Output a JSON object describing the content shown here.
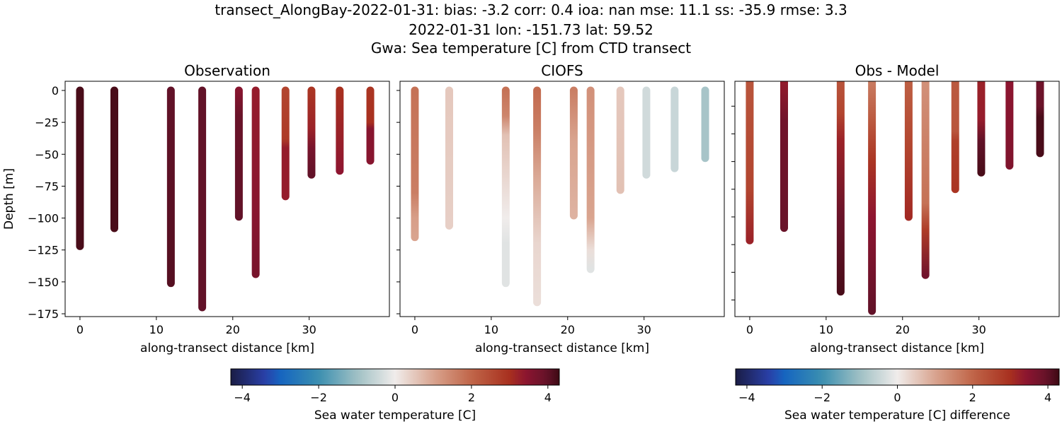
{
  "title_lines": [
    "transect_AlongBay-2022-01-31: bias: -3.2  corr: 0.4  ioa: nan  mse: 11.1  ss: -35.9  rmse: 3.3",
    "2022-01-31 lon: -151.73 lat: 59.52",
    "Gwa: Sea temperature [C] from CTD transect"
  ],
  "chart_data": [
    {
      "type": "scatter",
      "title": "Observation",
      "xlabel": "along-transect distance [km]",
      "ylabel": "Depth [m]",
      "xlim": [
        -1.94,
        40.5
      ],
      "ylim": [
        -177.2,
        7.2
      ],
      "xticks": [
        0,
        10,
        20,
        30
      ],
      "yticks": [
        0,
        -25,
        -50,
        -75,
        -100,
        -125,
        -150,
        -175
      ],
      "show_ytick_labels": true,
      "colorbar": 0,
      "stations": [
        {
          "x": 0,
          "depth": 122,
          "profile": [
            [
              0,
              4.2
            ],
            [
              122,
              4.2
            ]
          ]
        },
        {
          "x": 4.5,
          "depth": 108,
          "profile": [
            [
              0,
              4.2
            ],
            [
              108,
              4.2
            ]
          ]
        },
        {
          "x": 11.9,
          "depth": 151,
          "profile": [
            [
              0,
              4.0
            ],
            [
              151,
              4.1
            ]
          ]
        },
        {
          "x": 16.0,
          "depth": 170,
          "profile": [
            [
              0,
              4.0
            ],
            [
              170,
              4.0
            ]
          ]
        },
        {
          "x": 20.8,
          "depth": 99,
          "profile": [
            [
              0,
              3.5
            ],
            [
              20,
              3.9
            ],
            [
              99,
              4.0
            ]
          ]
        },
        {
          "x": 23.0,
          "depth": 144,
          "profile": [
            [
              0,
              3.3
            ],
            [
              100,
              3.5
            ],
            [
              144,
              3.7
            ]
          ]
        },
        {
          "x": 26.9,
          "depth": 83,
          "profile": [
            [
              0,
              2.6
            ],
            [
              38,
              2.8
            ],
            [
              45,
              3.3
            ],
            [
              83,
              3.3
            ]
          ]
        },
        {
          "x": 30.3,
          "depth": 66,
          "profile": [
            [
              0,
              2.9
            ],
            [
              30,
              3.2
            ],
            [
              45,
              3.7
            ],
            [
              66,
              4.0
            ]
          ]
        },
        {
          "x": 34.0,
          "depth": 63,
          "profile": [
            [
              0,
              3.0
            ],
            [
              63,
              3.4
            ]
          ]
        },
        {
          "x": 38.0,
          "depth": 55,
          "profile": [
            [
              0,
              2.9
            ],
            [
              25,
              3.0
            ],
            [
              30,
              3.5
            ],
            [
              55,
              3.5
            ]
          ]
        }
      ]
    },
    {
      "type": "scatter",
      "title": "CIOFS",
      "xlabel": "along-transect distance [km]",
      "ylabel": "",
      "xlim": [
        -1.94,
        40.5
      ],
      "ylim": [
        -177.2,
        7.2
      ],
      "xticks": [
        0,
        10,
        20,
        30
      ],
      "yticks": [
        0,
        -25,
        -50,
        -75,
        -100,
        -125,
        -150,
        -175
      ],
      "show_ytick_labels": false,
      "colorbar": 0,
      "stations": [
        {
          "x": 0,
          "depth": 115,
          "profile": [
            [
              0,
              1.8
            ],
            [
              80,
              1.6
            ],
            [
              100,
              1.1
            ],
            [
              115,
              1.0
            ]
          ]
        },
        {
          "x": 4.5,
          "depth": 106,
          "profile": [
            [
              0,
              0.5
            ],
            [
              106,
              0.4
            ]
          ]
        },
        {
          "x": 11.9,
          "depth": 151,
          "profile": [
            [
              0,
              1.8
            ],
            [
              20,
              1.5
            ],
            [
              35,
              0.6
            ],
            [
              100,
              0.0
            ],
            [
              120,
              -0.2
            ],
            [
              151,
              -0.2
            ]
          ]
        },
        {
          "x": 16.0,
          "depth": 166,
          "profile": [
            [
              0,
              1.9
            ],
            [
              30,
              1.6
            ],
            [
              70,
              0.9
            ],
            [
              120,
              0.3
            ],
            [
              166,
              0.2
            ]
          ]
        },
        {
          "x": 20.8,
          "depth": 98,
          "profile": [
            [
              0,
              1.6
            ],
            [
              40,
              1.0
            ],
            [
              98,
              0.8
            ]
          ]
        },
        {
          "x": 23.0,
          "depth": 140,
          "profile": [
            [
              0,
              1.3
            ],
            [
              100,
              1.0
            ],
            [
              125,
              0.2
            ],
            [
              140,
              -0.2
            ]
          ]
        },
        {
          "x": 26.9,
          "depth": 78,
          "profile": [
            [
              0,
              0.5
            ],
            [
              78,
              0.6
            ]
          ]
        },
        {
          "x": 30.3,
          "depth": 66,
          "profile": [
            [
              0,
              -0.4
            ],
            [
              66,
              -0.4
            ]
          ]
        },
        {
          "x": 34.0,
          "depth": 61,
          "profile": [
            [
              0,
              -0.5
            ],
            [
              61,
              -0.5
            ]
          ]
        },
        {
          "x": 38.0,
          "depth": 53,
          "profile": [
            [
              0,
              -0.9
            ],
            [
              53,
              -0.9
            ]
          ]
        }
      ]
    },
    {
      "type": "scatter",
      "title": "Obs - Model",
      "xlabel": "along-transect distance [km]",
      "ylabel": "",
      "xlim": [
        -1.94,
        40.5
      ],
      "ylim": [
        -172,
        -2
      ],
      "xticks": [
        0,
        10,
        20,
        30
      ],
      "yticks": [
        -20,
        -40,
        -60,
        -80,
        -100,
        -120,
        -140,
        -160
      ],
      "show_ytick_labels": false,
      "colorbar": 1,
      "stations": [
        {
          "x": 0,
          "depth": 117,
          "profile": [
            [
              0,
              2.3
            ],
            [
              80,
              2.6
            ],
            [
              117,
              3.2
            ]
          ]
        },
        {
          "x": 4.5,
          "depth": 108,
          "profile": [
            [
              0,
              3.3
            ],
            [
              30,
              3.8
            ],
            [
              108,
              3.9
            ]
          ]
        },
        {
          "x": 11.9,
          "depth": 154,
          "profile": [
            [
              0,
              2.3
            ],
            [
              25,
              2.6
            ],
            [
              45,
              3.2
            ],
            [
              100,
              3.9
            ],
            [
              154,
              4.2
            ]
          ]
        },
        {
          "x": 16.0,
          "depth": 168,
          "profile": [
            [
              0,
              1.6
            ],
            [
              30,
              2.2
            ],
            [
              60,
              2.9
            ],
            [
              100,
              3.4
            ],
            [
              168,
              4.0
            ]
          ]
        },
        {
          "x": 20.8,
          "depth": 100,
          "profile": [
            [
              0,
              2.1
            ],
            [
              50,
              2.6
            ],
            [
              100,
              3.1
            ]
          ]
        },
        {
          "x": 23.0,
          "depth": 142,
          "profile": [
            [
              0,
              1.3
            ],
            [
              90,
              1.8
            ],
            [
              110,
              2.8
            ],
            [
              142,
              3.8
            ]
          ]
        },
        {
          "x": 26.9,
          "depth": 80,
          "profile": [
            [
              0,
              2.2
            ],
            [
              38,
              2.3
            ],
            [
              45,
              2.7
            ],
            [
              80,
              2.9
            ]
          ]
        },
        {
          "x": 30.3,
          "depth": 68,
          "profile": [
            [
              0,
              3.2
            ],
            [
              30,
              3.3
            ],
            [
              45,
              4.0
            ],
            [
              68,
              4.2
            ]
          ]
        },
        {
          "x": 34.0,
          "depth": 63,
          "profile": [
            [
              0,
              3.4
            ],
            [
              63,
              3.6
            ]
          ]
        },
        {
          "x": 38.0,
          "depth": 54,
          "profile": [
            [
              0,
              3.8
            ],
            [
              20,
              3.9
            ],
            [
              28,
              4.2
            ],
            [
              54,
              4.2
            ]
          ]
        }
      ]
    }
  ],
  "colorbars": [
    {
      "label": "Sea water temperature [C]",
      "vmin": -4.3,
      "vmax": 4.3,
      "ticks": [
        -4,
        -2,
        0,
        2,
        4
      ]
    },
    {
      "label": "Sea water temperature [C] difference",
      "vmin": -4.3,
      "vmax": 4.3,
      "ticks": [
        -4,
        -2,
        0,
        2,
        4
      ]
    }
  ],
  "colormap_stops": [
    [
      -4.3,
      "#1a1c45"
    ],
    [
      -3.4,
      "#2a40a8"
    ],
    [
      -3.0,
      "#1565c0"
    ],
    [
      -2.0,
      "#3b8fb0"
    ],
    [
      -1.0,
      "#9fc0c4"
    ],
    [
      0.0,
      "#f0eceb"
    ],
    [
      1.0,
      "#d9a48f"
    ],
    [
      2.0,
      "#c06548"
    ],
    [
      3.0,
      "#a8301f"
    ],
    [
      3.4,
      "#8e1530"
    ],
    [
      4.0,
      "#621228"
    ],
    [
      4.3,
      "#3c0912"
    ]
  ]
}
